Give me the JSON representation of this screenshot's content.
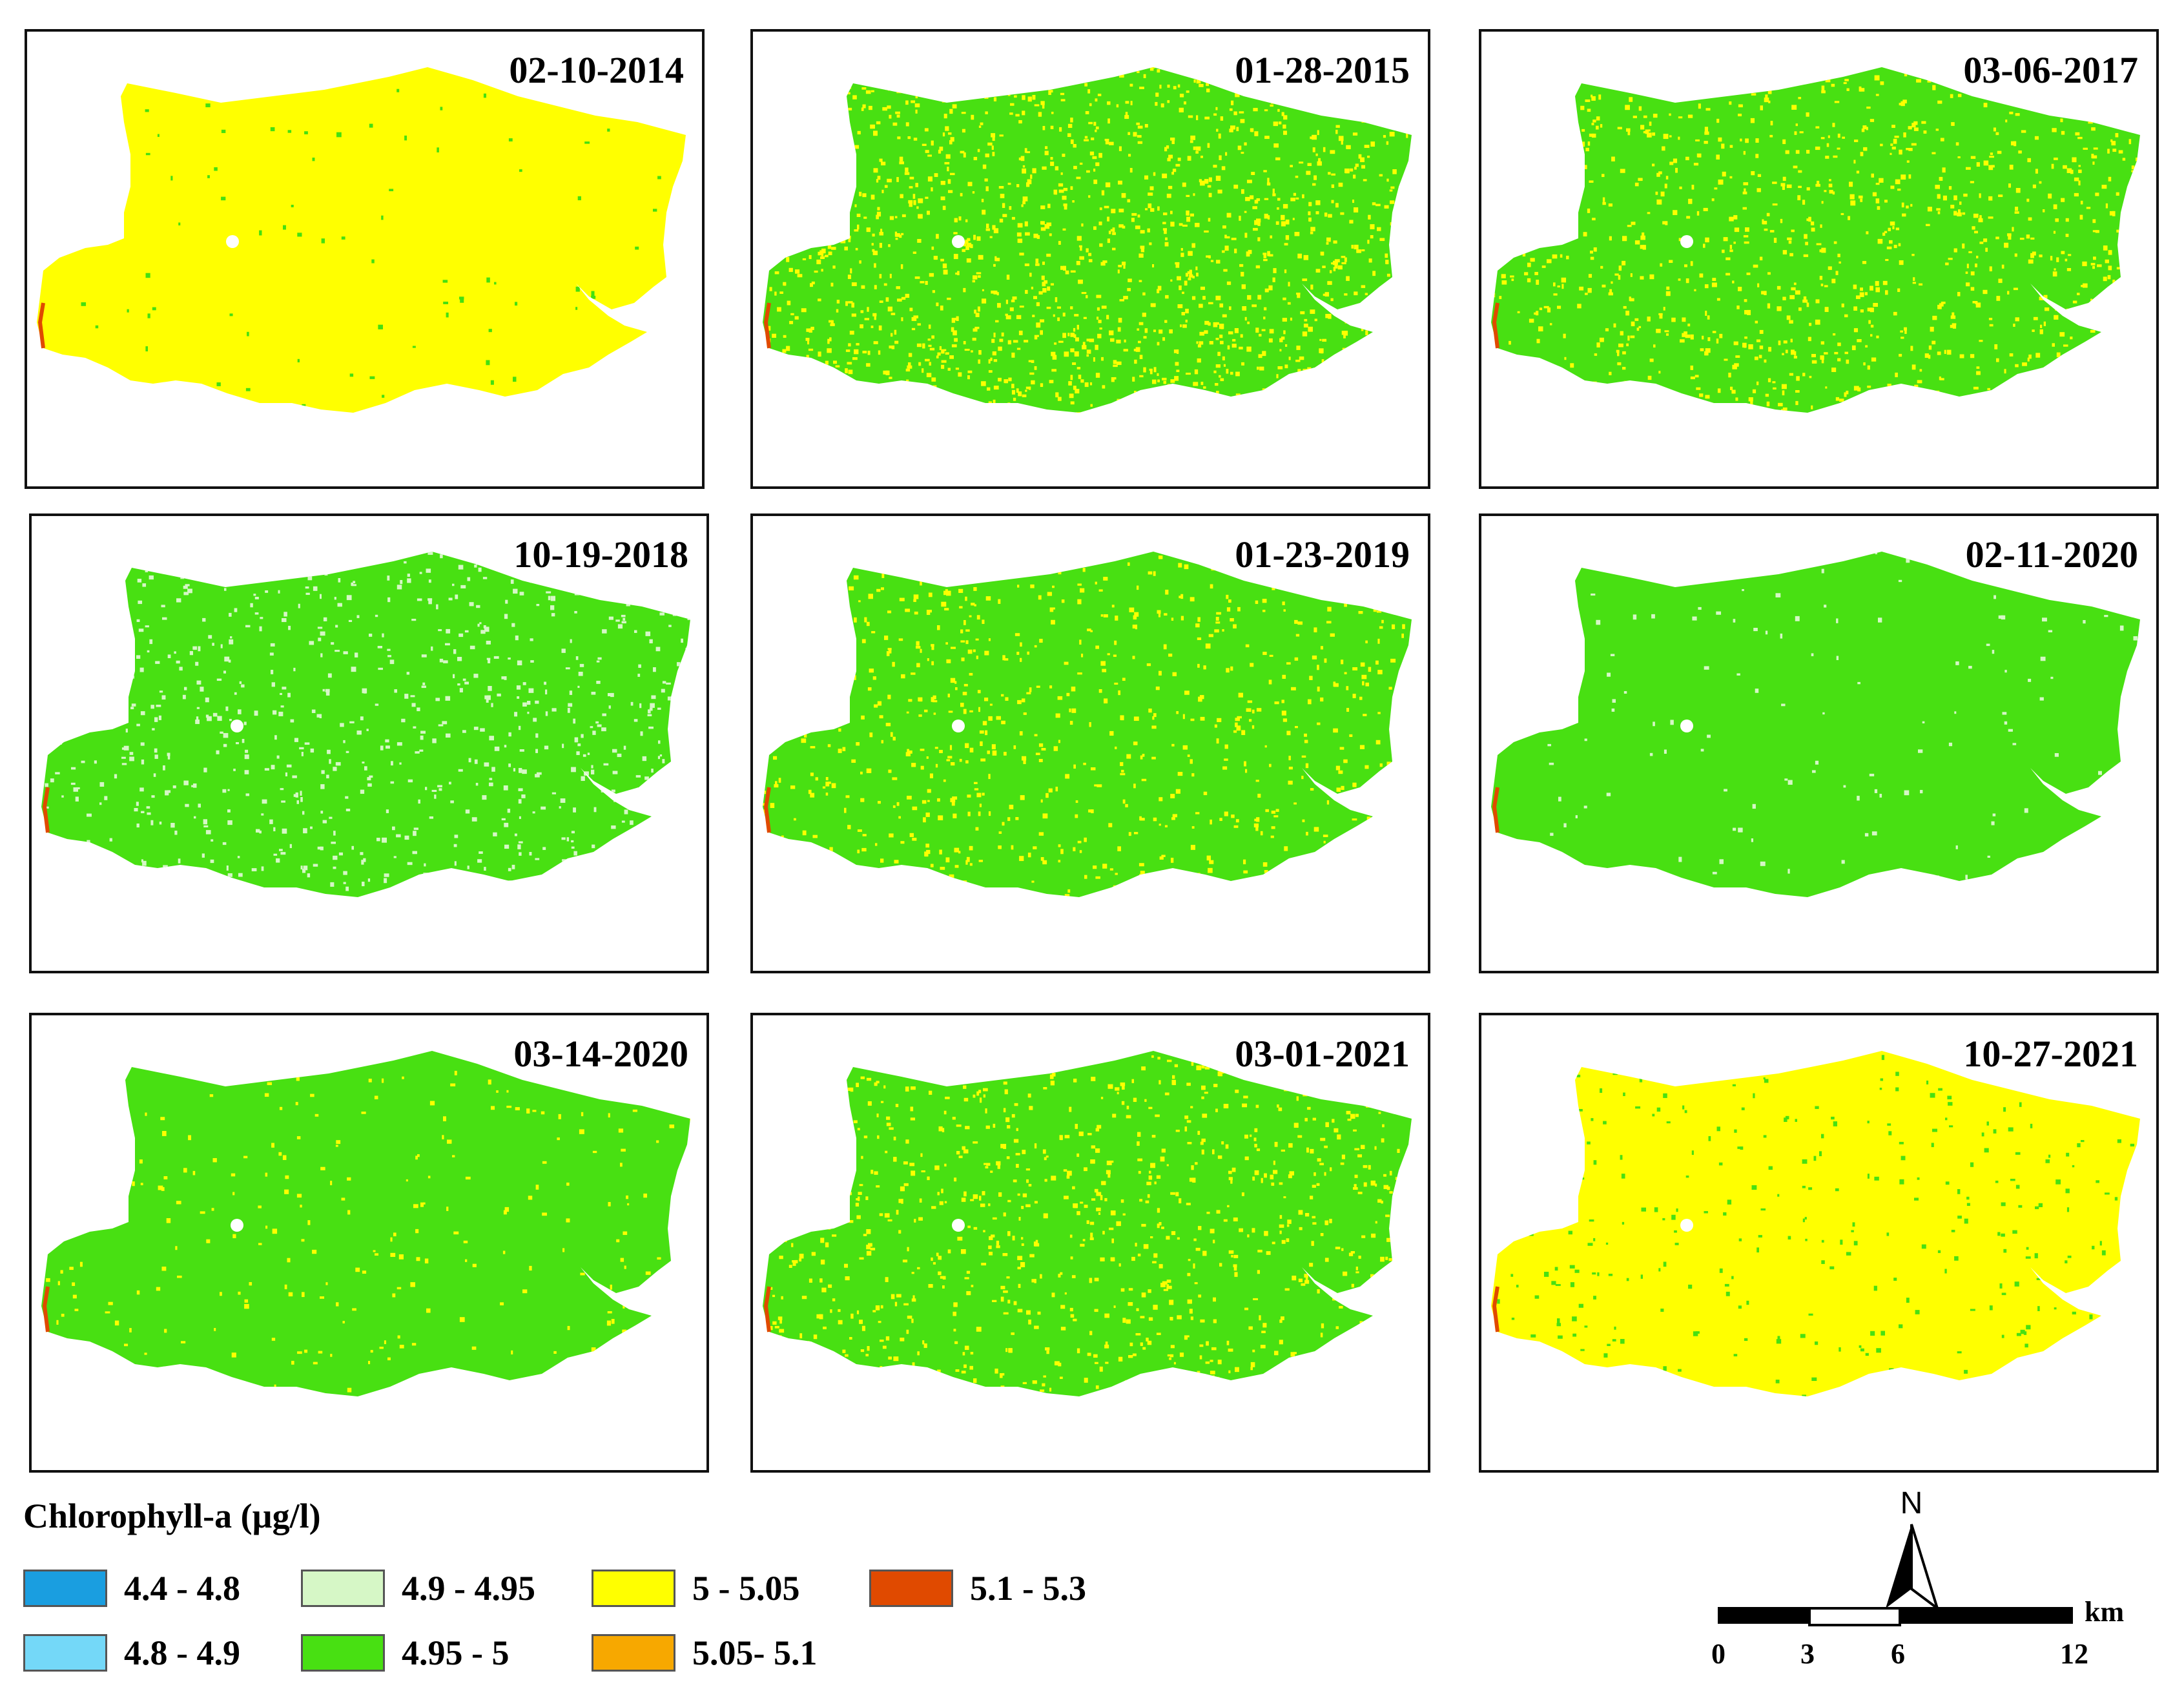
{
  "panels": [
    {
      "date": "02-10-2014",
      "base": "#ffff00",
      "speckle": "#44e010",
      "density": 0.04
    },
    {
      "date": "01-28-2015",
      "base": "#48e012",
      "speckle": "#ffff00",
      "density": 0.55
    },
    {
      "date": "03-06-2017",
      "base": "#48e012",
      "speckle": "#ffff00",
      "density": 0.4
    },
    {
      "date": "10-19-2018",
      "base": "#48e012",
      "speckle": "#d6f7c6",
      "density": 0.3
    },
    {
      "date": "01-23-2019",
      "base": "#48e012",
      "speckle": "#ffff00",
      "density": 0.3
    },
    {
      "date": "02-11-2020",
      "base": "#48e012",
      "speckle": "#d6f7c6",
      "density": 0.05
    },
    {
      "date": "03-14-2020",
      "base": "#48e012",
      "speckle": "#ffff00",
      "density": 0.1
    },
    {
      "date": "03-01-2021",
      "base": "#48e012",
      "speckle": "#ffff00",
      "density": 0.35
    },
    {
      "date": "10-27-2021",
      "base": "#ffff00",
      "speckle": "#48e012",
      "density": 0.12
    }
  ],
  "legend": {
    "title": "Chlorophyll-a (µg/l)",
    "items": [
      {
        "label": "4.4 - 4.8",
        "color": "#1a9ee0"
      },
      {
        "label": "4.8 - 4.9",
        "color": "#74d8f8"
      },
      {
        "label": "4.9 - 4.95",
        "color": "#d6f7c6"
      },
      {
        "label": "4.95 - 5",
        "color": "#48e012"
      },
      {
        "label": "5 - 5.05",
        "color": "#ffff00"
      },
      {
        "label": "5.05- 5.1",
        "color": "#f7a800"
      },
      {
        "label": "5.1 - 5.3",
        "color": "#e04a00"
      }
    ]
  },
  "north_arrow": {
    "label": "N"
  },
  "scale_bar": {
    "unit": "km",
    "ticks": [
      "0",
      "3",
      "6",
      "12"
    ]
  }
}
